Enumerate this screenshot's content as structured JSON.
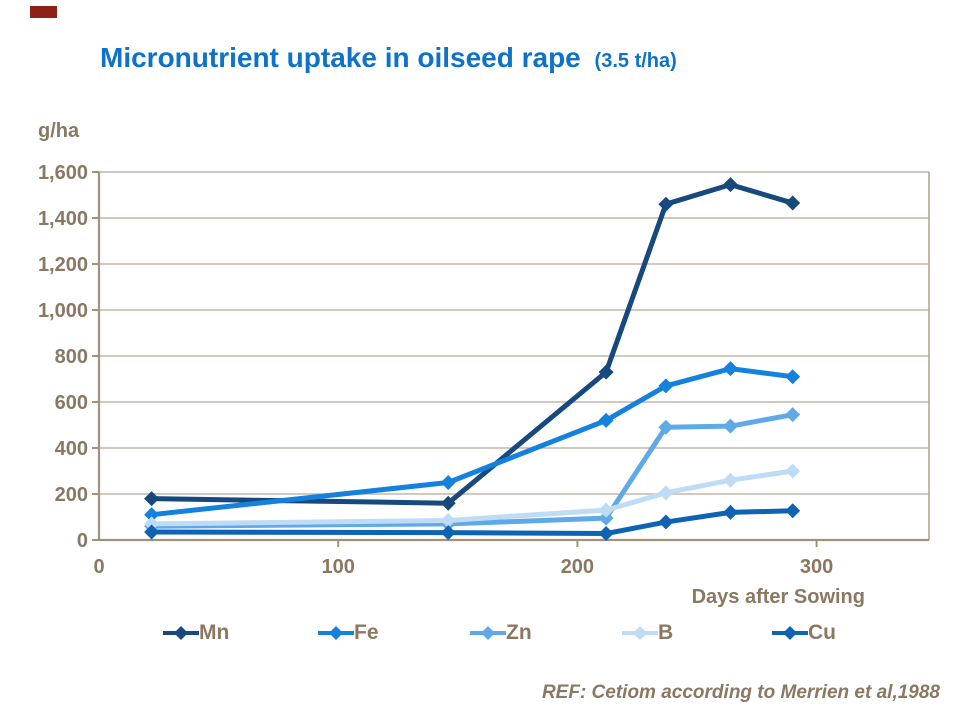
{
  "title": {
    "text": "Micronutrient uptake in oilseed rape",
    "suffix": "(3.5 t/ha)",
    "color": "#0d72c8"
  },
  "chart_data": {
    "type": "line",
    "x": [
      22,
      146,
      212,
      237,
      264,
      290
    ],
    "series": [
      {
        "name": "Mn",
        "color": "#17497e",
        "values": [
          180,
          160,
          730,
          1460,
          1545,
          1465
        ]
      },
      {
        "name": "Fe",
        "color": "#1381dd",
        "values": [
          110,
          250,
          520,
          670,
          745,
          710
        ]
      },
      {
        "name": "Zn",
        "color": "#5fa9e8",
        "values": [
          60,
          70,
          95,
          490,
          495,
          545
        ]
      },
      {
        "name": "B",
        "color": "#bedcf6",
        "values": [
          70,
          85,
          130,
          205,
          260,
          300
        ]
      },
      {
        "name": "Cu",
        "color": "#0f63b4",
        "values": [
          35,
          32,
          28,
          78,
          120,
          127
        ]
      }
    ],
    "ylabel": "g/ha",
    "xlabel": "Days after Sowing",
    "ylim": [
      0,
      1600
    ],
    "xlim": [
      0,
      347
    ],
    "yticks": [
      0,
      200,
      400,
      600,
      800,
      1000,
      1200,
      1400,
      1600
    ],
    "ytick_labels": [
      "0",
      "200",
      "400",
      "600",
      "800",
      "1,000",
      "1,200",
      "1,400",
      "1,600"
    ],
    "xticks": [
      0,
      100,
      200,
      300
    ],
    "xtick_labels": [
      "0",
      "100",
      "200",
      "300"
    ],
    "grid": "horizontal",
    "legend_position": "bottom",
    "marker": "diamond"
  },
  "footer": {
    "ref": "REF: Cetiom according to Merrien et al,1988"
  },
  "colors": {
    "accent_bar": "#8e2116",
    "axis_text": "#8a7862",
    "axis_line": "#a59179",
    "grid_line": "#c4b6a6",
    "frame_line": "#b5a694"
  }
}
